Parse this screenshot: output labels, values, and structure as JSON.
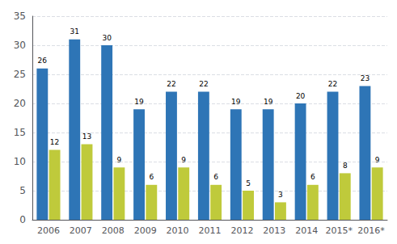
{
  "chart_data": {
    "type": "bar",
    "categories": [
      "2006",
      "2007",
      "2008",
      "2009",
      "2010",
      "2011",
      "2012",
      "2013",
      "2014",
      "2015*",
      "2016*"
    ],
    "series": [
      {
        "color": "#2E75B6",
        "values": [
          26,
          31,
          30,
          19,
          22,
          22,
          19,
          19,
          20,
          22,
          23
        ]
      },
      {
        "color": "#BFCA3B",
        "values": [
          12,
          13,
          9,
          6,
          9,
          6,
          5,
          3,
          6,
          8,
          9
        ]
      }
    ],
    "ylim": [
      0,
      35
    ],
    "yticks": [
      0,
      5,
      10,
      15,
      20,
      25,
      30,
      35
    ],
    "grid": true,
    "data_labels": true
  }
}
